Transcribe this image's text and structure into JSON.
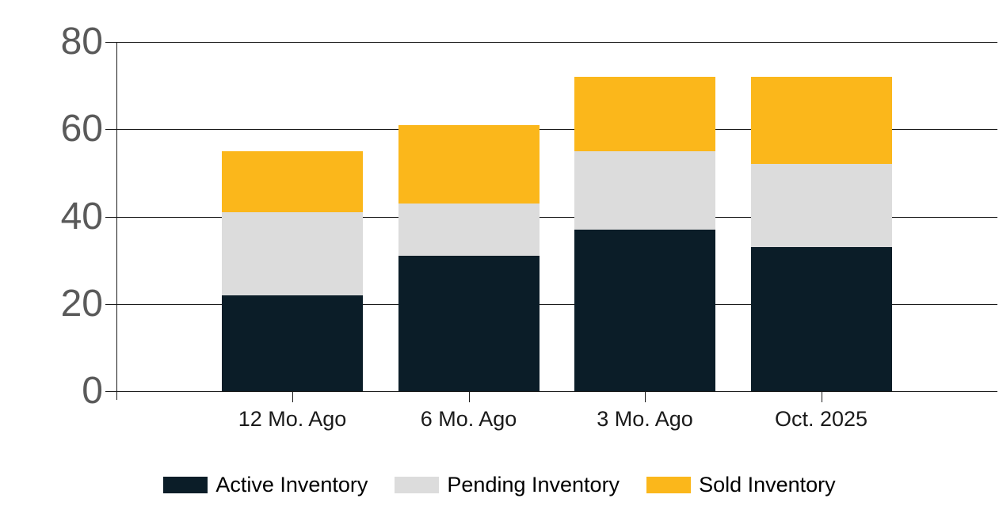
{
  "chart_data": {
    "type": "bar",
    "stacked": true,
    "title": "",
    "categories": [
      "12 Mo. Ago",
      "6 Mo. Ago",
      "3 Mo. Ago",
      "Oct. 2025"
    ],
    "series": [
      {
        "name": "Active Inventory",
        "color": "#0b1d28",
        "values": [
          22,
          31,
          37,
          33
        ]
      },
      {
        "name": "Pending Inventory",
        "color": "#dcdcdc",
        "values": [
          19,
          12,
          18,
          19
        ]
      },
      {
        "name": "Sold Inventory",
        "color": "#fbb71b",
        "values": [
          14,
          18,
          17,
          20
        ]
      }
    ],
    "stack_totals": [
      55,
      61,
      72,
      72
    ],
    "y_axis": {
      "min": 0,
      "max": 80,
      "tick_interval": 20,
      "tick_labels": [
        "0",
        "20",
        "40",
        "60",
        "80"
      ]
    },
    "grid": "horizontal",
    "legend_position": "bottom"
  },
  "colors": {
    "background": "#ffffff",
    "gridline": "#1a1a1a",
    "y_tick_label": "#5a5a5a",
    "x_tick_label": "#1a1a1a",
    "legend_text": "#000000"
  }
}
